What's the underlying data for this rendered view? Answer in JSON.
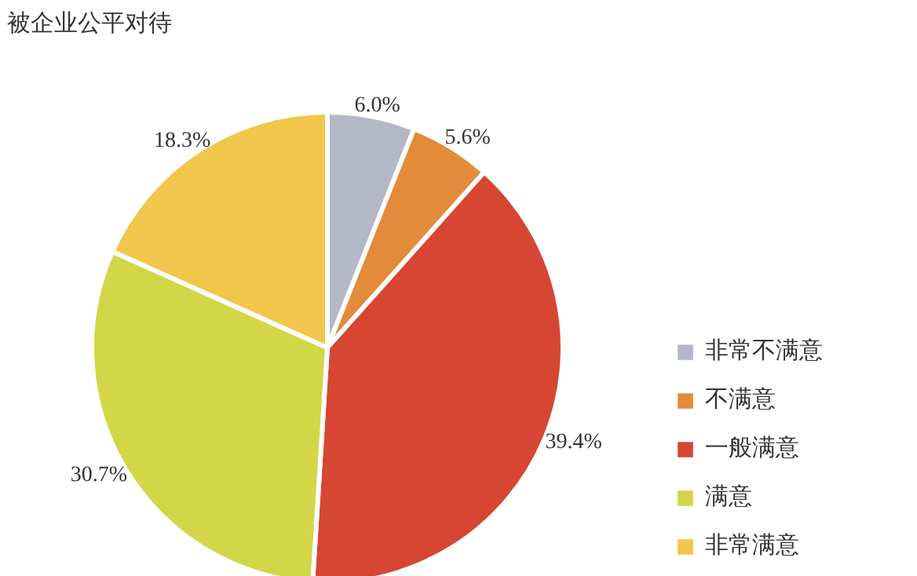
{
  "chart_data": {
    "type": "pie",
    "title": "被企业公平对待",
    "categories": [
      "非常不满意",
      "不满意",
      "一般满意",
      "满意",
      "非常满意"
    ],
    "values": [
      6.0,
      5.6,
      39.4,
      30.7,
      18.3
    ],
    "value_labels": [
      "6.0%",
      "5.6%",
      "39.4%",
      "30.7%",
      "18.3%"
    ],
    "colors": [
      "#b4b7c6",
      "#e38a3b",
      "#d64632",
      "#d3d647",
      "#f1c64b"
    ],
    "legend": "right"
  }
}
